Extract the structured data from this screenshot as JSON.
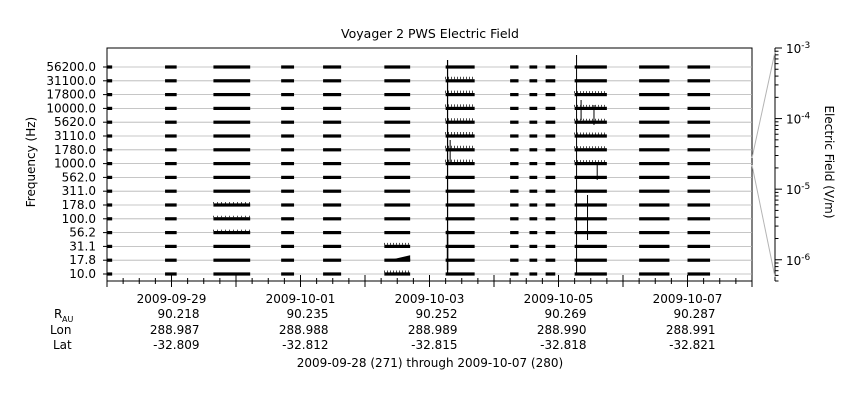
{
  "chart_data": {
    "type": "line",
    "title": "Voyager 2 PWS Electric Field",
    "ylabel": "Frequency (Hz)",
    "y2label": "Electric Field (V/m)",
    "channels": [
      "10.0",
      "17.8",
      "31.1",
      "56.2",
      "100.0",
      "178.0",
      "311.0",
      "562.0",
      "1000.0",
      "1780.0",
      "3110.0",
      "5620.0",
      "10000.0",
      "17800.0",
      "31100.0",
      "56200.0"
    ],
    "y_tick_labels": [
      "56200.0",
      "31100.0",
      "17800.0",
      "10000.0",
      "5620.0",
      "3110.0",
      "1780.0",
      "1000.0",
      "562.0",
      "311.0",
      "178.0",
      "100.0",
      "56.2",
      "31.1",
      "17.8",
      "10.0"
    ],
    "x_tick_labels": [
      "2009-09-29",
      "2009-10-01",
      "2009-10-03",
      "2009-10-05",
      "2009-10-07"
    ],
    "xlim_doy": [
      271,
      281
    ],
    "colorbar": {
      "scale": "log",
      "range": [
        5e-07,
        0.001
      ],
      "ticks": [
        {
          "base": "10",
          "exp": "-3",
          "value": 0.001
        },
        {
          "base": "10",
          "exp": "-4",
          "value": 0.0001
        },
        {
          "base": "10",
          "exp": "-5",
          "value": 1e-05
        },
        {
          "base": "10",
          "exp": "-6",
          "value": 1e-06
        }
      ]
    },
    "data_segments_doy": [
      [
        271.0,
        271.08
      ],
      [
        271.9,
        272.08
      ],
      [
        272.65,
        273.22
      ],
      [
        273.7,
        273.9
      ],
      [
        274.35,
        274.63
      ],
      [
        275.3,
        275.7
      ],
      [
        276.25,
        276.7
      ],
      [
        277.25,
        277.38
      ],
      [
        277.55,
        277.67
      ],
      [
        277.8,
        277.95
      ],
      [
        278.25,
        278.75
      ],
      [
        279.25,
        279.72
      ],
      [
        280.0,
        280.35
      ]
    ],
    "ephemeris_labels": {
      "r": "R",
      "r_sub": "AU",
      "lon": "Lon",
      "lat": "Lat"
    },
    "ephemeris": [
      {
        "date": "2009-09-29",
        "r": "90.218",
        "lon": "288.987",
        "lat": "-32.809"
      },
      {
        "date": "2009-10-01",
        "r": "90.235",
        "lon": "288.988",
        "lat": "-32.812"
      },
      {
        "date": "2009-10-03",
        "r": "90.252",
        "lon": "288.989",
        "lat": "-32.815"
      },
      {
        "date": "2009-10-05",
        "r": "90.269",
        "lon": "288.990",
        "lat": "-32.818"
      },
      {
        "date": "2009-10-07",
        "r": "90.287",
        "lon": "288.991",
        "lat": "-32.821"
      }
    ],
    "range_label": "2009-09-28 (271) through 2009-10-07 (280)"
  }
}
